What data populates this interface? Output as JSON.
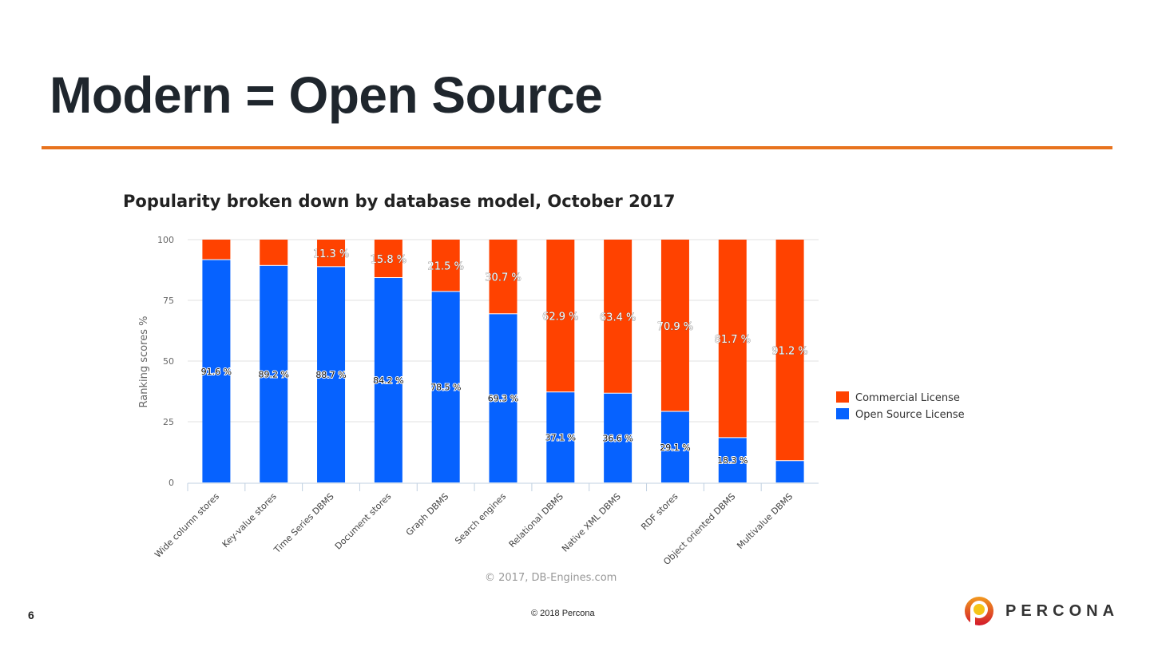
{
  "slide": {
    "title": "Modern = Open Source",
    "page_number": "6",
    "footer": "© 2018 Percona",
    "logo_text": "PERCONA"
  },
  "chart_data": {
    "type": "bar",
    "stacked": true,
    "title": "Popularity broken down by database model, October 2017",
    "ylabel": "Ranking scores %",
    "xlabel": "",
    "ylim": [
      0,
      100
    ],
    "yticks": [
      "0",
      "25",
      "50",
      "75",
      "100"
    ],
    "grid": true,
    "legend_position": "right",
    "credit": "© 2017, DB-Engines.com",
    "categories": [
      "Wide column stores",
      "Key-value stores",
      "Time Series DBMS",
      "Document stores",
      "Graph DBMS",
      "Search engines",
      "Relational DBMS",
      "Native XML DBMS",
      "RDF stores",
      "Object oriented DBMS",
      "Multivalue DBMS"
    ],
    "series": [
      {
        "name": "Commercial License",
        "color": "#ff4200",
        "values": [
          8.4,
          10.8,
          11.3,
          15.8,
          21.5,
          30.7,
          62.9,
          63.4,
          70.9,
          81.7,
          91.2
        ],
        "labels": [
          null,
          null,
          "11.3 %",
          "15.8 %",
          "21.5 %",
          "30.7 %",
          "62.9 %",
          "63.4 %",
          "70.9 %",
          "81.7 %",
          "91.2 %"
        ]
      },
      {
        "name": "Open Source License",
        "color": "#0662ff",
        "values": [
          91.6,
          89.2,
          88.7,
          84.2,
          78.5,
          69.3,
          37.1,
          36.6,
          29.1,
          18.3,
          8.8
        ],
        "labels": [
          "91.6 %",
          "89.2 %",
          "88.7 %",
          "84.2 %",
          "78.5 %",
          "69.3 %",
          "37.1 %",
          "36.6 %",
          "29.1 %",
          "18.3 %",
          null
        ]
      }
    ]
  }
}
